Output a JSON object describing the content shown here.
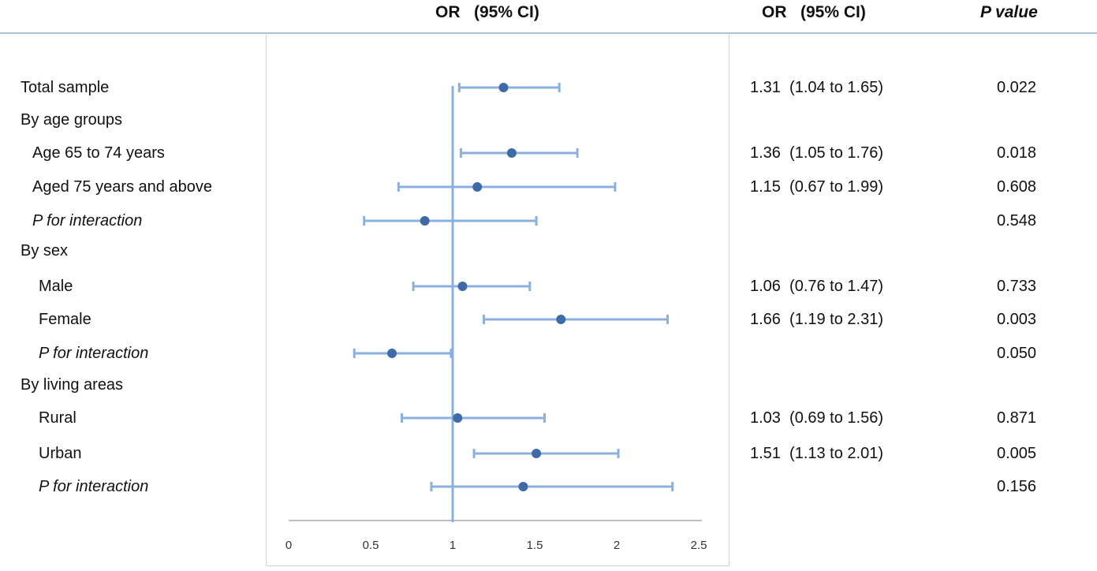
{
  "header": {
    "col_or_ci_plot": "OR   (95% CI)",
    "col_or_ci_text": "OR   (95% CI)",
    "col_p_value": "P value"
  },
  "rows": [
    {
      "label": "Total sample",
      "kind": "head",
      "or_ci": "1.31  (1.04 to 1.65)",
      "p": "0.022"
    },
    {
      "label": "By age groups",
      "kind": "head",
      "or_ci": "",
      "p": ""
    },
    {
      "label": "Age 65 to 74 years",
      "kind": "sub",
      "or_ci": "1.36  (1.05 to 1.76)",
      "p": "0.018"
    },
    {
      "label": "Aged 75 years and above",
      "kind": "sub",
      "or_ci": "1.15  (0.67 to 1.99)",
      "p": "0.608"
    },
    {
      "label": "P for interaction",
      "kind": "ital",
      "or_ci": "",
      "p": "0.548"
    },
    {
      "label": "By sex",
      "kind": "head",
      "or_ci": "",
      "p": ""
    },
    {
      "label": "Male",
      "kind": "sub2",
      "or_ci": "1.06  (0.76 to 1.47)",
      "p": "0.733"
    },
    {
      "label": "Female",
      "kind": "sub2",
      "or_ci": "1.66  (1.19 to 2.31)",
      "p": "0.003"
    },
    {
      "label": "P for interaction",
      "kind": "ital2",
      "or_ci": "",
      "p": "0.050"
    },
    {
      "label": "By living areas",
      "kind": "head",
      "or_ci": "",
      "p": ""
    },
    {
      "label": "Rural",
      "kind": "sub2",
      "or_ci": "1.03  (0.69 to 1.56)",
      "p": "0.871"
    },
    {
      "label": "Urban",
      "kind": "sub2",
      "or_ci": "1.51  (1.13 to 2.01)",
      "p": "0.005"
    },
    {
      "label": "P for interaction",
      "kind": "ital2",
      "or_ci": "",
      "p": "0.156"
    }
  ],
  "chart_data": {
    "type": "scatter",
    "title": "",
    "xlabel": "",
    "ylabel": "",
    "xlim": [
      0,
      2.5
    ],
    "x_ticks": [
      "0",
      "0.5",
      "1",
      "1.5",
      "2",
      "2.5"
    ],
    "reference_line": 1,
    "grid": false,
    "colors": {
      "line": "#8bb0df",
      "point": "#3f6aa8",
      "axis": "#aaaaaa"
    },
    "points": [
      {
        "or": 1.31,
        "lo": 1.04,
        "hi": 1.65
      },
      null,
      {
        "or": 1.36,
        "lo": 1.05,
        "hi": 1.76
      },
      {
        "or": 1.15,
        "lo": 0.67,
        "hi": 1.99
      },
      {
        "or": 0.83,
        "lo": 0.46,
        "hi": 1.51
      },
      null,
      {
        "or": 1.06,
        "lo": 0.76,
        "hi": 1.47
      },
      {
        "or": 1.66,
        "lo": 1.19,
        "hi": 2.31
      },
      {
        "or": 0.63,
        "lo": 0.4,
        "hi": 0.99
      },
      null,
      {
        "or": 1.03,
        "lo": 0.69,
        "hi": 1.56
      },
      {
        "or": 1.51,
        "lo": 1.13,
        "hi": 2.01
      },
      {
        "or": 1.43,
        "lo": 0.87,
        "hi": 2.34
      }
    ]
  }
}
